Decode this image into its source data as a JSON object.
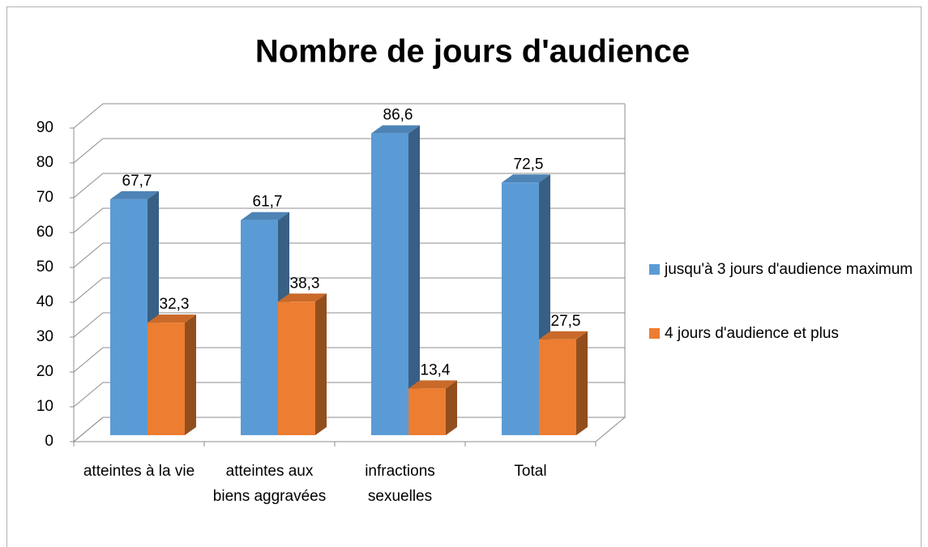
{
  "chart_data": {
    "type": "bar3d",
    "title": "Nombre de jours d'audience",
    "categories": [
      "atteintes à la vie",
      "atteintes aux biens aggravées",
      "infractions sexuelles",
      "Total"
    ],
    "series": [
      {
        "name": "jusqu'à 3 jours d'audience maximum",
        "color": "#5b9bd5",
        "values": [
          67.7,
          61.7,
          86.6,
          72.5
        ],
        "value_labels": [
          "67,7",
          "61,7",
          "86,6",
          "72,5"
        ]
      },
      {
        "name": "4 jours d'audience et plus",
        "color": "#ed7d31",
        "values": [
          32.3,
          38.3,
          13.4,
          27.5
        ],
        "value_labels": [
          "32,3",
          "38,3",
          "13,4",
          "27,5"
        ]
      }
    ],
    "ylim": [
      0,
      90
    ],
    "yticks": [
      0,
      10,
      20,
      30,
      40,
      50,
      60,
      70,
      80,
      90
    ],
    "grid": true,
    "legend": "right"
  }
}
